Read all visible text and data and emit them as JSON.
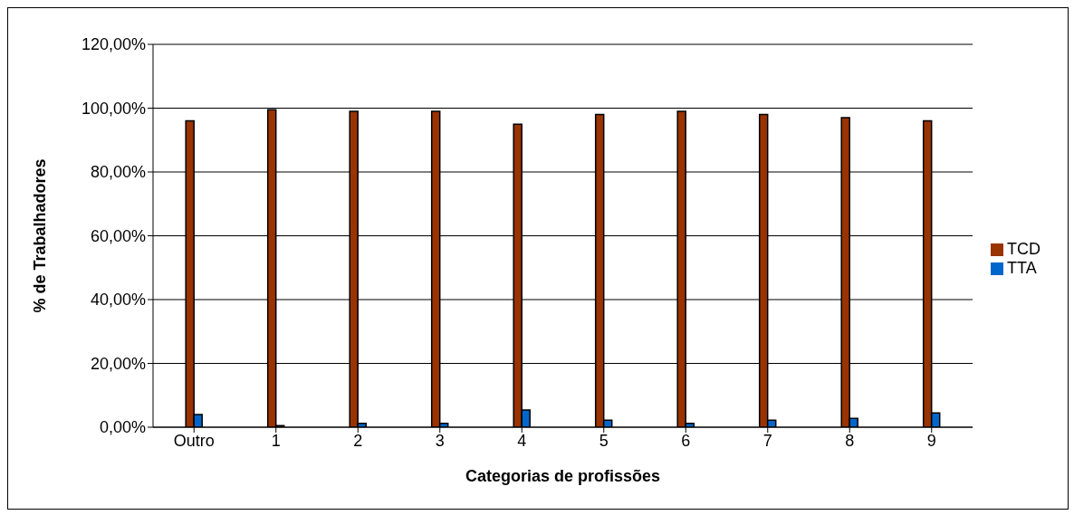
{
  "chart_data": {
    "type": "bar",
    "xlabel": "Categorias de profissões",
    "ylabel": "% de Trabalhadores",
    "categories": [
      "Outro",
      "1",
      "2",
      "3",
      "4",
      "5",
      "6",
      "7",
      "8",
      "9"
    ],
    "series": [
      {
        "name": "TCD",
        "color": "#993300",
        "values": [
          96,
          99.5,
          99,
          99,
          95,
          98,
          99,
          98,
          97,
          96
        ]
      },
      {
        "name": "TTA",
        "color": "#0066cc",
        "values": [
          4,
          0.5,
          1.2,
          1.2,
          5.4,
          2.2,
          1.2,
          2.2,
          2.8,
          4.5
        ]
      }
    ],
    "ylim": [
      0,
      120
    ],
    "yticks": [
      {
        "value": 0,
        "label": "0,00%"
      },
      {
        "value": 20,
        "label": "20,00%"
      },
      {
        "value": 40,
        "label": "40,00%"
      },
      {
        "value": 60,
        "label": "60,00%"
      },
      {
        "value": 80,
        "label": "80,00%"
      },
      {
        "value": 100,
        "label": "100,00%"
      },
      {
        "value": 120,
        "label": "120,00%"
      }
    ],
    "grid": "y",
    "legend": "right"
  }
}
